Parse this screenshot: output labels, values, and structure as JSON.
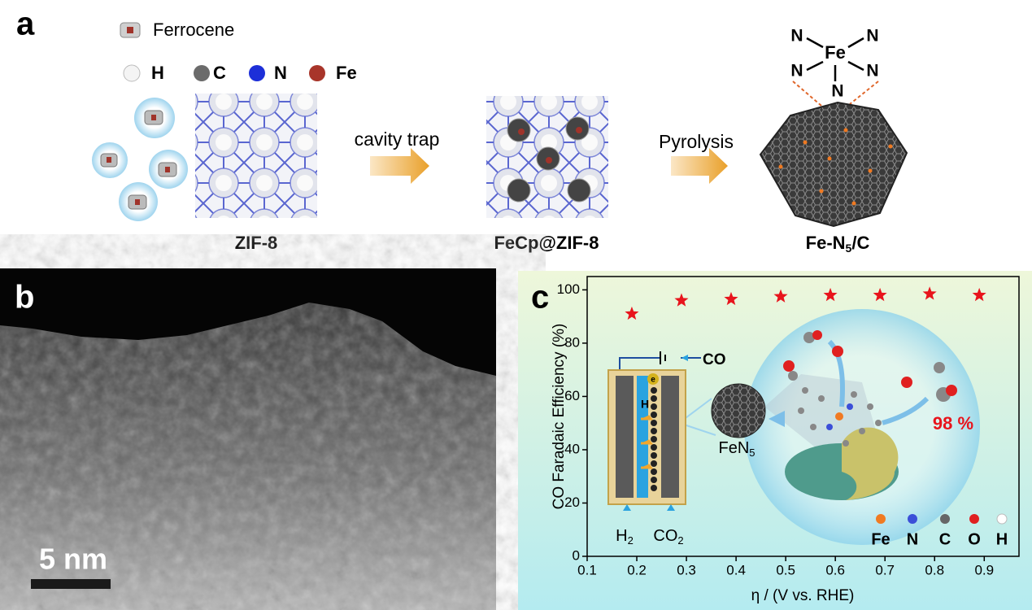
{
  "panel_a": {
    "label": "a",
    "ferrocene": "Ferrocene",
    "atoms": [
      "H",
      "C",
      "N",
      "Fe"
    ],
    "step1": "cavity trap",
    "step2": "Pyrolysis",
    "zif8": "ZIF-8",
    "fecp": "FeCp@ZIF-8",
    "product": {
      "base": "Fe-N",
      "sub": "5",
      "tail": "/C"
    },
    "complex": {
      "center": "Fe",
      "ligands": [
        "N",
        "N",
        "N",
        "N",
        "N"
      ]
    }
  },
  "panel_b": {
    "label": "b",
    "scale_bar": "5 nm"
  },
  "panel_c": {
    "label": "c",
    "inset": {
      "co": "CO",
      "electron": "e",
      "proton": "H",
      "h2": {
        "base": "H",
        "sub": "2"
      },
      "co2": {
        "base": "CO",
        "sub": "2"
      },
      "catalyst": {
        "base": "FeN",
        "sub": "5"
      },
      "efficiency": "98 %",
      "atoms": [
        "Fe",
        "N",
        "C",
        "O",
        "H"
      ]
    }
  },
  "chart_data": {
    "type": "scatter",
    "marker": "star",
    "color": "#e8141c",
    "xlabel": "η / (V vs. RHE)",
    "ylabel": "CO Faradaic Efficiency (%)",
    "x": [
      0.19,
      0.29,
      0.39,
      0.49,
      0.59,
      0.69,
      0.79,
      0.89
    ],
    "values": [
      91,
      96,
      96.5,
      97.5,
      98,
      98,
      98.5,
      98
    ],
    "xlim": [
      0.1,
      0.97
    ],
    "ylim": [
      0,
      105
    ],
    "xticks": [
      0.1,
      0.2,
      0.3,
      0.4,
      0.5,
      0.6,
      0.7,
      0.8,
      0.9
    ],
    "yticks": [
      0,
      20,
      40,
      60,
      80,
      100
    ]
  }
}
